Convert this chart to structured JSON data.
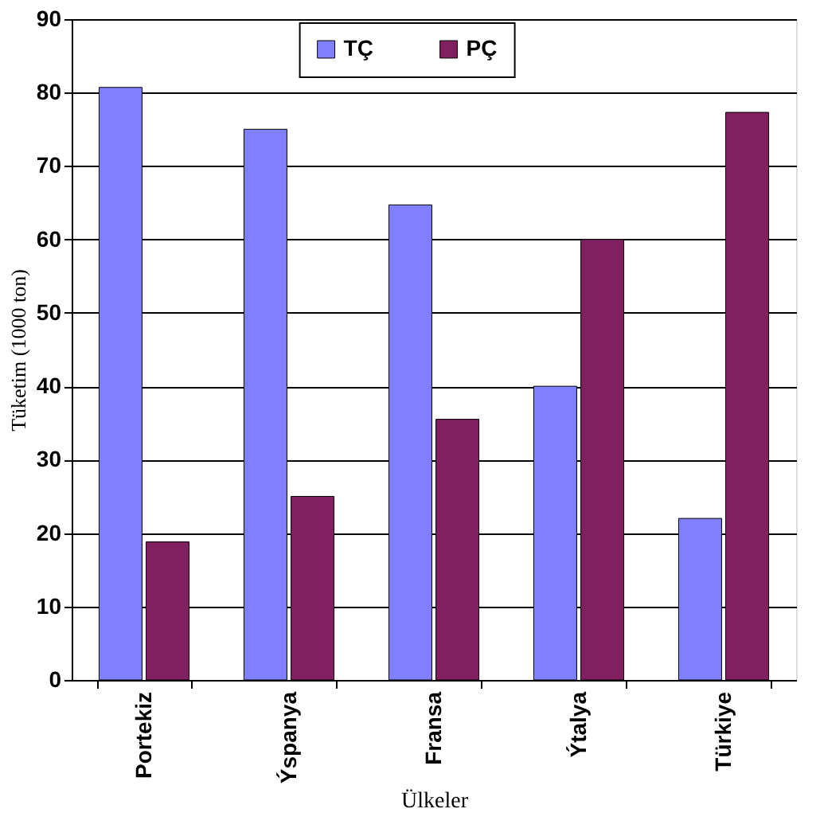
{
  "chart_data": {
    "type": "bar",
    "xlabel": "Ülkeler",
    "ylabel": "Tüketim (1000 ton)",
    "categories": [
      "Portekiz",
      "Ýspanya",
      "Fransa",
      "Ýtalya",
      "Türkiye"
    ],
    "series": [
      {
        "name": "TÇ",
        "color": "#8080ff",
        "values": [
          80.7,
          75,
          64.7,
          40,
          22
        ]
      },
      {
        "name": "PÇ",
        "color": "#802060",
        "values": [
          18.8,
          25,
          35.5,
          60,
          77.3
        ]
      }
    ],
    "ylim": [
      0,
      90
    ],
    "yticks": [
      0,
      10,
      20,
      30,
      40,
      50,
      60,
      70,
      80,
      90
    ],
    "grid": "y",
    "legend": "top right"
  }
}
